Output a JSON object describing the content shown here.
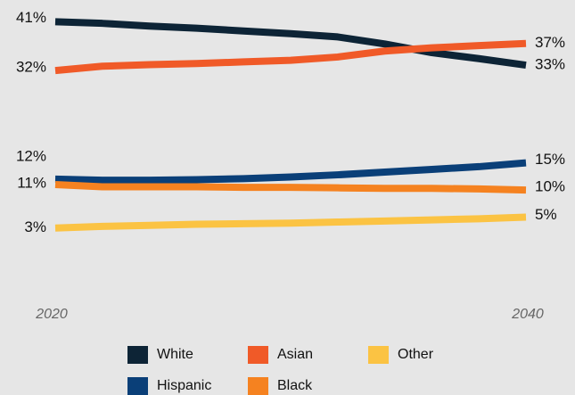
{
  "chart_data": {
    "type": "line",
    "categories": [
      "2020",
      null,
      null,
      null,
      null,
      null,
      null,
      null,
      null,
      null,
      "2040"
    ],
    "ylim": [
      0,
      45
    ],
    "series": [
      {
        "name": "White",
        "color": "#0d2436",
        "values": [
          41,
          40.7,
          40.2,
          39.8,
          39.3,
          38.8,
          38.2,
          36.9,
          35.3,
          34.2,
          33
        ],
        "value_labels": [
          "41%",
          null,
          null,
          null,
          null,
          null,
          null,
          null,
          null,
          null,
          "33%"
        ]
      },
      {
        "name": "Asian",
        "color": "#f05a28",
        "values": [
          32,
          32.8,
          33.1,
          33.3,
          33.6,
          33.9,
          34.5,
          35.6,
          36.2,
          36.6,
          37
        ],
        "value_labels": [
          "32%",
          null,
          null,
          null,
          null,
          null,
          null,
          null,
          null,
          null,
          "37%"
        ]
      },
      {
        "name": "Other",
        "color": "#fbc343",
        "values": [
          3,
          3.3,
          3.5,
          3.7,
          3.8,
          3.9,
          4.1,
          4.3,
          4.5,
          4.7,
          5
        ],
        "value_labels": [
          "3%",
          null,
          null,
          null,
          null,
          null,
          null,
          null,
          null,
          null,
          "5%"
        ]
      },
      {
        "name": "Hispanic",
        "color": "#0a3f78",
        "values": [
          12,
          11.8,
          11.8,
          11.9,
          12.1,
          12.4,
          12.8,
          13.3,
          13.8,
          14.3,
          15
        ],
        "value_labels": [
          "12%",
          null,
          null,
          null,
          null,
          null,
          null,
          null,
          null,
          null,
          "15%"
        ]
      },
      {
        "name": "Black",
        "color": "#f58220",
        "values": [
          11,
          10.6,
          10.6,
          10.6,
          10.5,
          10.5,
          10.4,
          10.3,
          10.3,
          10.2,
          10
        ],
        "value_labels": [
          "11%",
          null,
          null,
          null,
          null,
          null,
          null,
          null,
          null,
          null,
          "10%"
        ]
      }
    ]
  }
}
